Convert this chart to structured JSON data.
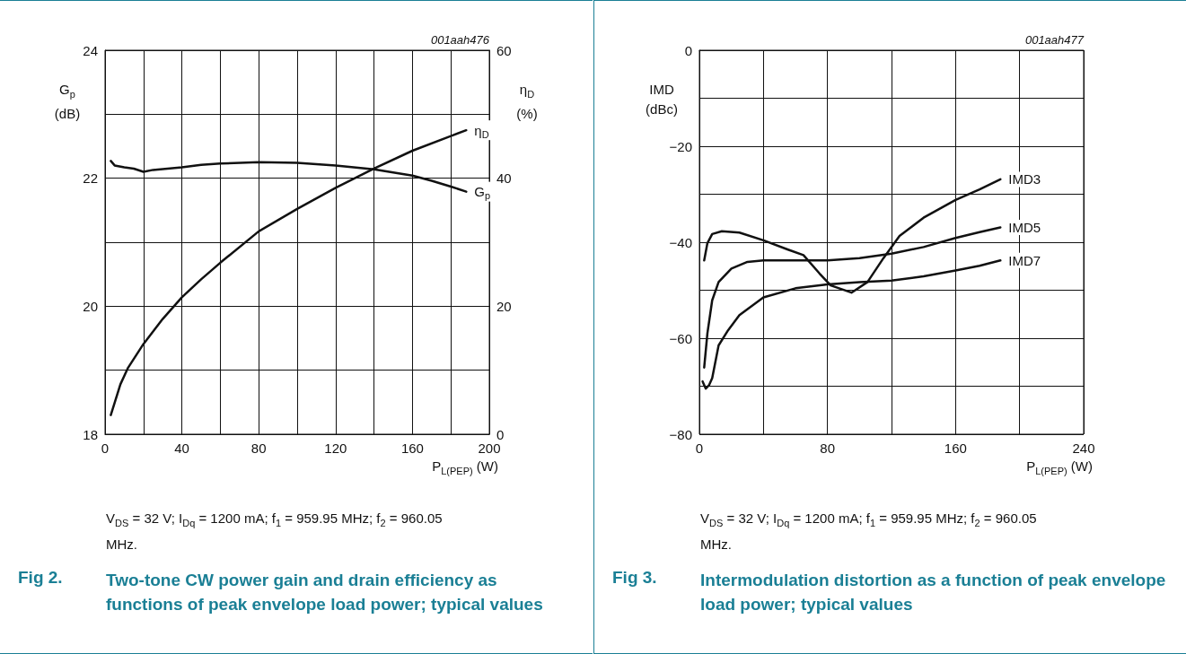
{
  "chart_data": [
    {
      "type": "line",
      "title": "Two-tone CW power gain and drain efficiency as functions of peak envelope load power; typical values",
      "xlabel": "P$_{L(PEP)}$ (W)",
      "ylabel": "G$_{p}$\n(dB)",
      "y2label": "η$_{D}$\n(%)",
      "annotations": [
        "001aah476",
        "V$_{DS}$ = 32 V; I$_{Dq}$ = 1200 mA; f$_{1}$ = 959.95 MHz; f$_{2}$ = 960.05 MHz.",
        "Fig 2."
      ],
      "series": [
        {
          "name": "G$_{p}$",
          "color": "#111111",
          "x": [
            3,
            5,
            10,
            15,
            20,
            25,
            40,
            50,
            60,
            80,
            100,
            120,
            140,
            160,
            170,
            180,
            188
          ],
          "values": [
            22.27,
            22.2,
            22.17,
            22.15,
            22.1,
            22.13,
            22.17,
            22.21,
            22.23,
            22.25,
            22.24,
            22.2,
            22.14,
            22.04,
            21.96,
            21.87,
            21.79
          ]
        },
        {
          "name": "η$_{D}$",
          "color": "#111111",
          "axis": "y2",
          "x": [
            3,
            8,
            12,
            20,
            30,
            40,
            50,
            60,
            80,
            100,
            120,
            140,
            160,
            180,
            188
          ],
          "values": [
            3,
            7.8,
            10.4,
            14.1,
            18,
            21.4,
            24.2,
            26.8,
            31.7,
            35.2,
            38.5,
            41.5,
            44.3,
            46.6,
            47.5
          ]
        }
      ],
      "xlim": [
        0,
        200
      ],
      "xticks": [
        0,
        {
          "value": 20,
          "label": null
        },
        40,
        {
          "value": 60,
          "label": null
        },
        80,
        {
          "value": 100,
          "label": null
        },
        120,
        {
          "value": 140,
          "label": null
        },
        160,
        {
          "value": 180,
          "label": null
        },
        200
      ],
      "ylim": [
        18,
        24
      ],
      "yticks": [
        18,
        {
          "value": 19,
          "label": null
        },
        20,
        {
          "value": 21,
          "label": null
        },
        22,
        {
          "value": 23,
          "label": null
        },
        24
      ],
      "y2lim": [
        0,
        60
      ],
      "y2ticks": [
        0,
        {
          "value": 10,
          "label": null
        },
        20,
        {
          "value": 30,
          "label": null
        },
        40,
        {
          "value": 50,
          "label": null
        },
        60
      ],
      "grid": true,
      "marker": "none"
    },
    {
      "type": "line",
      "title": "Intermodulation distortion as a function of peak envelope load power; typical values",
      "xlabel": "P$_{L(PEP)}$ (W)",
      "ylabel": "IMD\n(dBc)",
      "annotations": [
        "001aah477",
        "V$_{DS}$ = 32 V; I$_{Dq}$ = 1200 mA; f$_{1}$ = 959.95 MHz; f$_{2}$ = 960.05 MHz.",
        "Fig 3."
      ],
      "series": [
        {
          "name": "IMD3",
          "color": "#111111",
          "x": [
            3,
            5,
            8,
            14,
            25,
            40,
            55,
            65,
            75,
            82,
            95,
            105,
            115,
            125,
            140,
            160,
            175,
            188
          ],
          "values": [
            -43.8,
            -40.2,
            -38.3,
            -37.7,
            -38,
            -39.6,
            -41.5,
            -42.7,
            -46.5,
            -49,
            -50.5,
            -48.3,
            -43.3,
            -38.7,
            -34.9,
            -31.2,
            -29,
            -26.9
          ]
        },
        {
          "name": "IMD5",
          "color": "#111111",
          "x": [
            3,
            5,
            8,
            12,
            20,
            30,
            40,
            80,
            100,
            120,
            140,
            160,
            175,
            188
          ],
          "values": [
            -66.1,
            -59,
            -52.1,
            -48.3,
            -45.5,
            -44.1,
            -43.8,
            -43.8,
            -43.3,
            -42.4,
            -41,
            -39.1,
            -37.9,
            -36.9
          ]
        },
        {
          "name": "IMD7",
          "color": "#111111",
          "x": [
            2,
            4,
            6,
            8,
            12,
            18,
            25,
            40,
            60,
            80,
            100,
            120,
            140,
            160,
            175,
            188
          ],
          "values": [
            -69,
            -70.5,
            -69.8,
            -68.3,
            -61.5,
            -58.3,
            -55.2,
            -51.5,
            -49.6,
            -48.8,
            -48.3,
            -48,
            -47.1,
            -45.9,
            -44.9,
            -43.8
          ]
        }
      ],
      "xlim": [
        0,
        240
      ],
      "xticks": [
        0,
        {
          "value": 40,
          "label": null
        },
        80,
        {
          "value": 120,
          "label": null
        },
        160,
        {
          "value": 200,
          "label": null
        },
        240
      ],
      "ylim": [
        -80,
        0
      ],
      "yticks": [
        -80,
        {
          "value": -70,
          "label": null
        },
        -60,
        {
          "value": -50,
          "label": null
        },
        -40,
        {
          "value": -30,
          "label": null
        },
        -20,
        {
          "value": -10,
          "label": null
        },
        0
      ],
      "grid": true,
      "marker": "none"
    }
  ]
}
